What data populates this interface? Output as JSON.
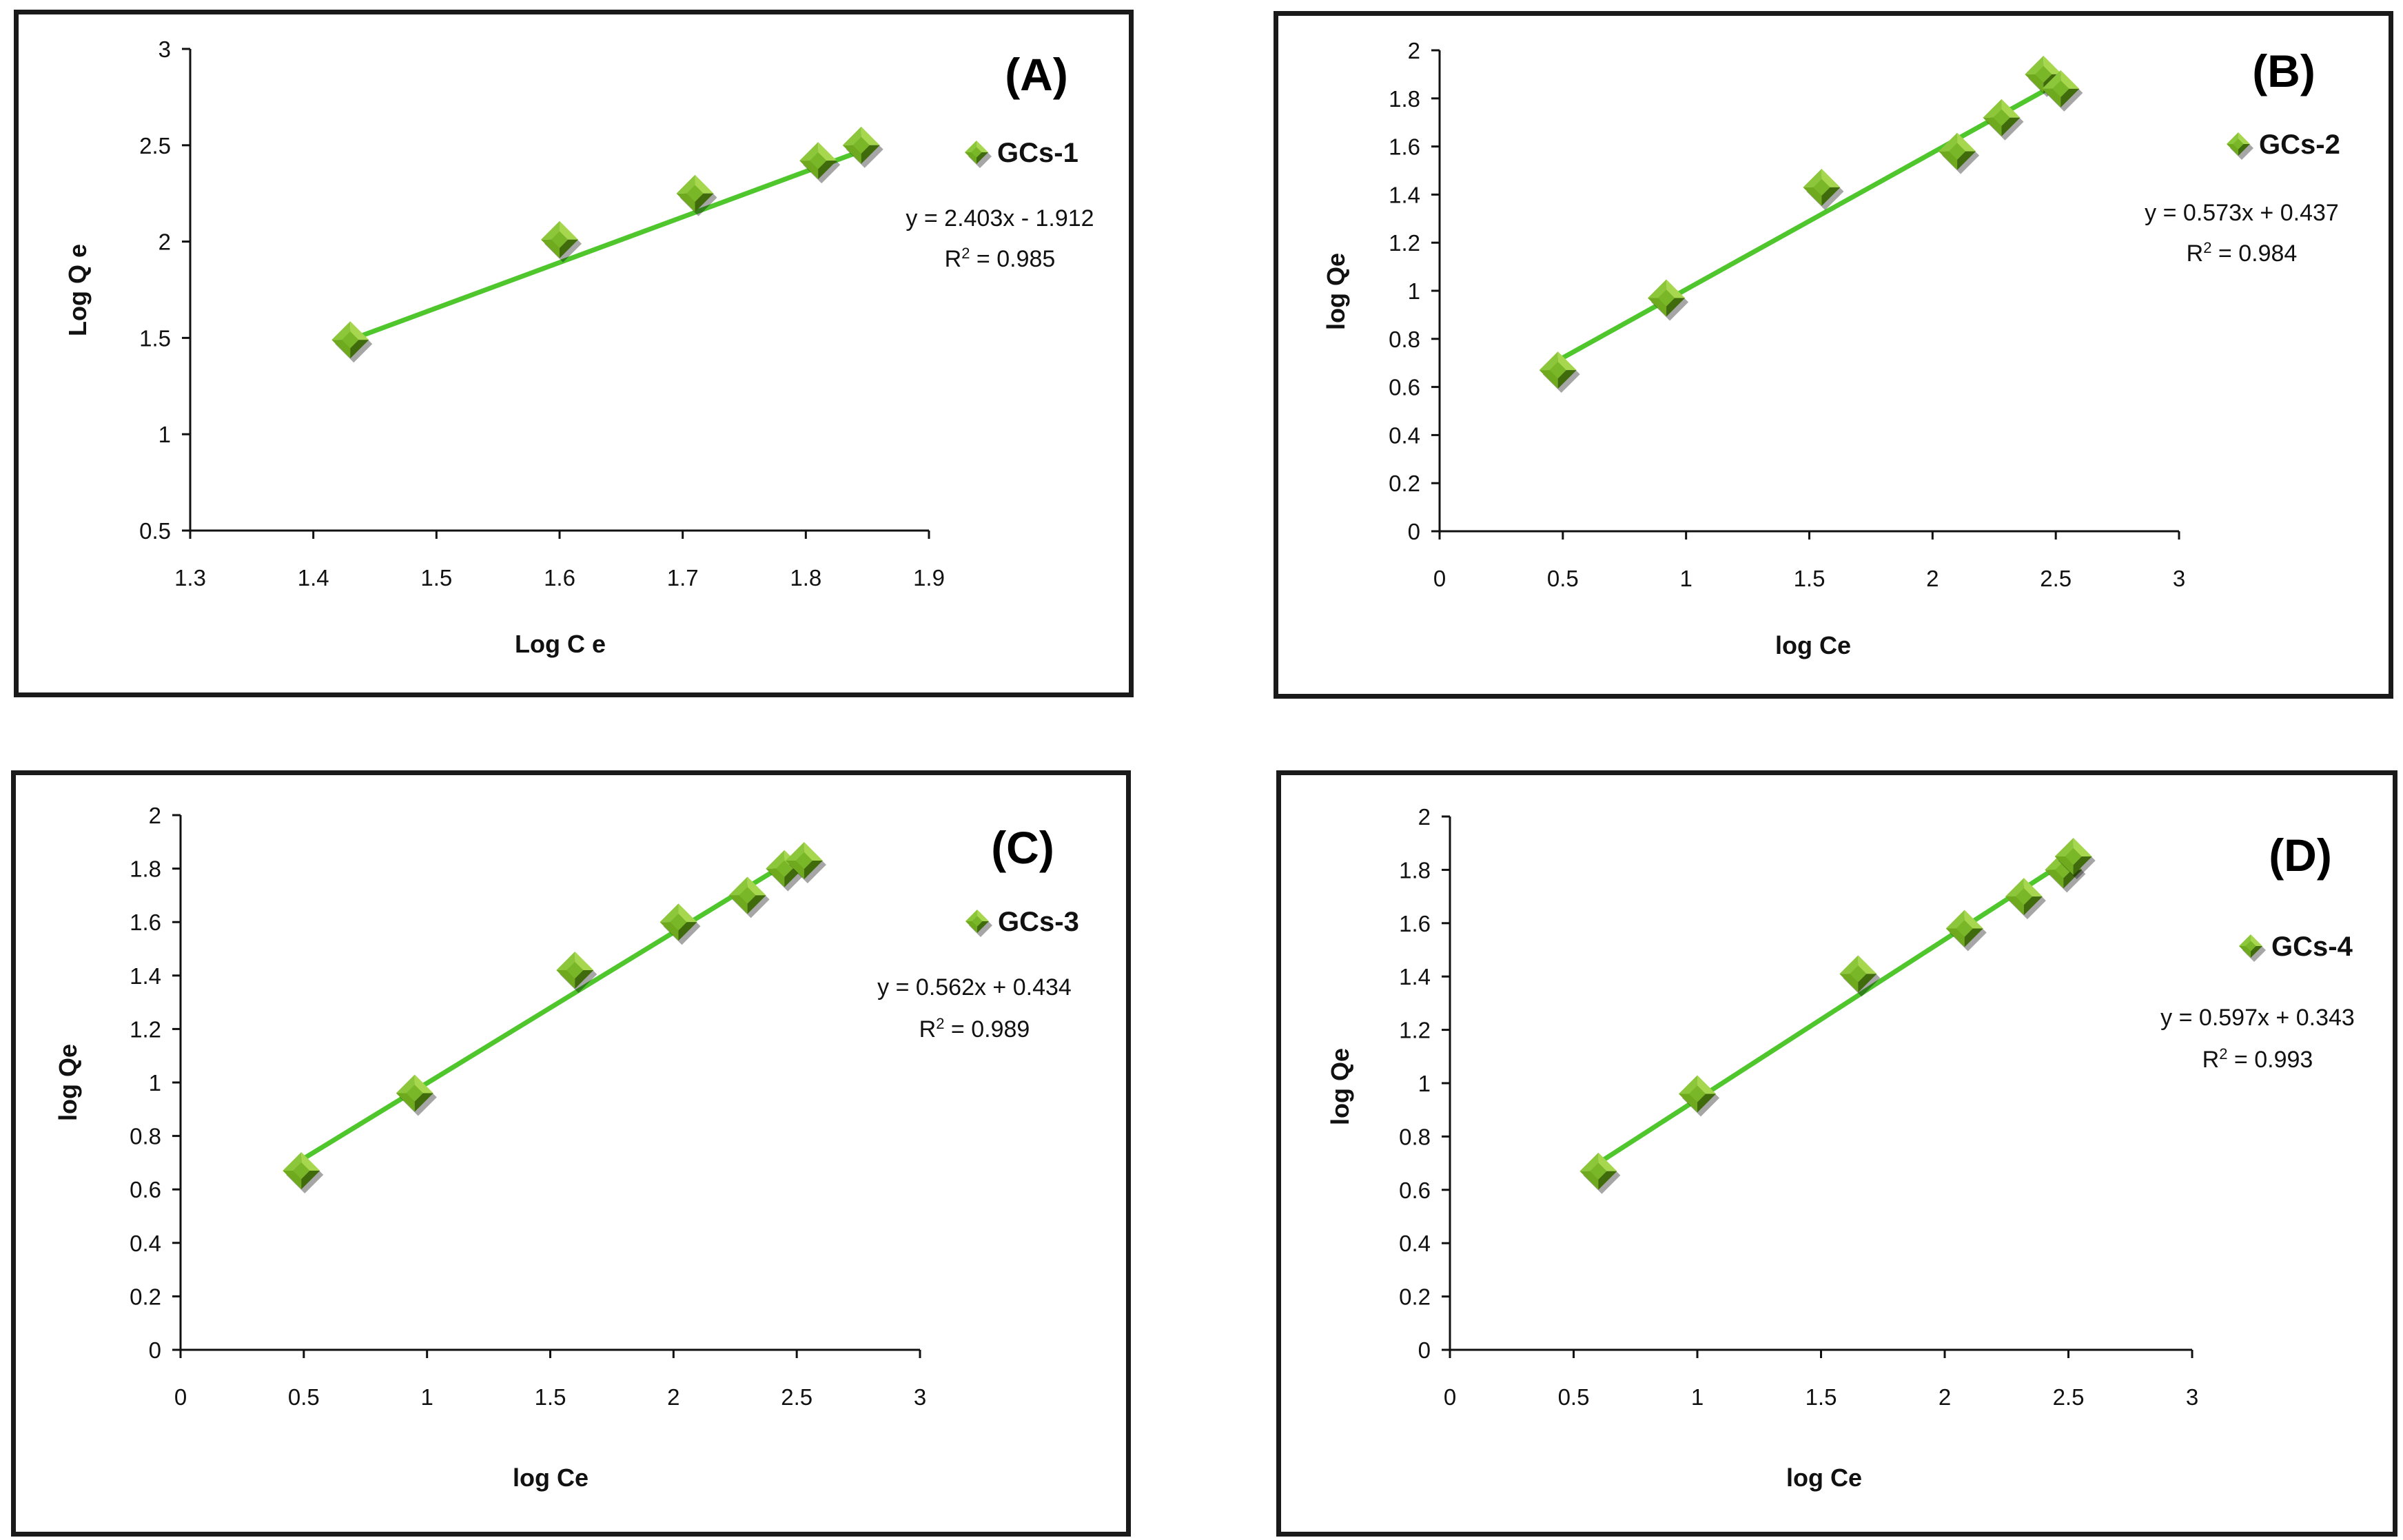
{
  "colors": {
    "marker": "#6faa1e",
    "marker_light": "#a7d74f",
    "marker_dark": "#3f6b0c",
    "line": "#4fc72c",
    "axis": "#111111"
  },
  "legend_icon": "diamond-marker-icon",
  "chart_data": [
    {
      "type": "scatter",
      "title": "(A)",
      "legend": "GCs-1",
      "xlabel": "Log C e",
      "ylabel": "Log Q e",
      "xlim": [
        1.3,
        1.9
      ],
      "ylim": [
        0.5,
        3
      ],
      "xticks": [
        "1.3",
        "1.4",
        "1.5",
        "1.6",
        "1.7",
        "1.8",
        "1.9"
      ],
      "yticks": [
        "0.5",
        "1",
        "1.5",
        "2",
        "2.5",
        "3"
      ],
      "x": [
        1.43,
        1.6,
        1.71,
        1.81,
        1.845
      ],
      "y": [
        1.49,
        2.01,
        2.25,
        2.42,
        2.5
      ],
      "trendline": {
        "x": [
          1.43,
          1.845
        ],
        "y": [
          1.49,
          2.47
        ]
      },
      "equation": "y = 2.403x - 1.912",
      "r2_label": "R",
      "r2_exp": "2",
      "r2_value": " = 0.985"
    },
    {
      "type": "scatter",
      "title": "(B)",
      "legend": "GCs-2",
      "xlabel": "log Ce",
      "ylabel": "log Qe",
      "xlim": [
        0,
        3
      ],
      "ylim": [
        0,
        2
      ],
      "xticks": [
        "0",
        "0.5",
        "1",
        "1.5",
        "2",
        "2.5",
        "3"
      ],
      "yticks": [
        "0",
        "0.2",
        "0.4",
        "0.6",
        "0.8",
        "1",
        "1.2",
        "1.4",
        "1.6",
        "1.8",
        "2"
      ],
      "x": [
        0.48,
        0.92,
        1.55,
        2.1,
        2.28,
        2.45,
        2.52
      ],
      "y": [
        0.67,
        0.97,
        1.43,
        1.58,
        1.72,
        1.9,
        1.84
      ],
      "trendline": {
        "x": [
          0.48,
          2.52
        ],
        "y": [
          0.71,
          1.87
        ]
      },
      "equation": "y = 0.573x + 0.437",
      "r2_label": "R",
      "r2_exp": "2",
      "r2_value": " = 0.984"
    },
    {
      "type": "scatter",
      "title": "(C)",
      "legend": "GCs-3",
      "xlabel": "log Ce",
      "ylabel": "log Qe",
      "xlim": [
        0,
        3
      ],
      "ylim": [
        0,
        2
      ],
      "xticks": [
        "0",
        "0.5",
        "1",
        "1.5",
        "2",
        "2.5",
        "3"
      ],
      "yticks": [
        "0",
        "0.2",
        "0.4",
        "0.6",
        "0.8",
        "1",
        "1.2",
        "1.4",
        "1.6",
        "1.8",
        "2"
      ],
      "x": [
        0.49,
        0.95,
        1.6,
        2.02,
        2.3,
        2.45,
        2.53
      ],
      "y": [
        0.67,
        0.96,
        1.42,
        1.6,
        1.7,
        1.8,
        1.83
      ],
      "trendline": {
        "x": [
          0.49,
          2.53
        ],
        "y": [
          0.71,
          1.86
        ]
      },
      "equation": "y = 0.562x + 0.434",
      "r2_label": "R",
      "r2_exp": "2",
      "r2_value": " = 0.989"
    },
    {
      "type": "scatter",
      "title": "(D)",
      "legend": "GCs-4",
      "xlabel": "log Ce",
      "ylabel": "log Qe",
      "xlim": [
        0,
        3
      ],
      "ylim": [
        0,
        2
      ],
      "xticks": [
        "0",
        "0.5",
        "1",
        "1.5",
        "2",
        "2.5",
        "3"
      ],
      "yticks": [
        "0",
        "0.2",
        "0.4",
        "0.6",
        "0.8",
        "1",
        "1.2",
        "1.4",
        "1.6",
        "1.8",
        "2"
      ],
      "x": [
        0.6,
        1.0,
        1.65,
        2.08,
        2.32,
        2.48,
        2.52
      ],
      "y": [
        0.67,
        0.96,
        1.41,
        1.58,
        1.7,
        1.8,
        1.85
      ],
      "trendline": {
        "x": [
          0.6,
          2.52
        ],
        "y": [
          0.7,
          1.85
        ]
      },
      "equation": "y = 0.597x + 0.343",
      "r2_label": "R",
      "r2_exp": "2",
      "r2_value": " = 0.993"
    }
  ]
}
